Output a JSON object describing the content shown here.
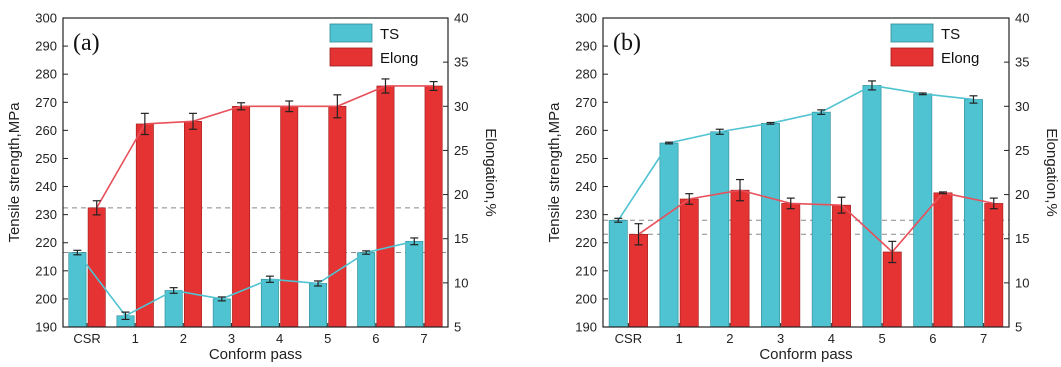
{
  "figure": {
    "colors": {
      "ts": "#4fc3d1",
      "elong": "#e53232",
      "ts_line": "#4fc3d1",
      "elong_line": "#e8505a",
      "ref_line": "#888888"
    },
    "chart_data": [
      {
        "type": "bar",
        "panel_label": "(a)",
        "categories": [
          "CSR",
          "1",
          "2",
          "3",
          "4",
          "5",
          "6",
          "7"
        ],
        "xlabel": "Conform pass",
        "ylabel": "Tensile strength,MPa",
        "y2label": "Elongation,%",
        "ylim": [
          190,
          300
        ],
        "yticks": [
          190,
          200,
          210,
          220,
          230,
          240,
          250,
          260,
          270,
          280,
          290,
          300
        ],
        "y2lim": [
          5,
          40
        ],
        "y2ticks": [
          5,
          10,
          15,
          20,
          25,
          30,
          35,
          40
        ],
        "legend": [
          "TS",
          "Elong"
        ],
        "legend_position": "top-right",
        "reference_lines": {
          "ts": 216.5,
          "elong": 18.5
        },
        "series": [
          {
            "name": "TS",
            "axis": "left",
            "values": [
              216.5,
              194,
              203,
              200,
              207,
              205.5,
              216.5,
              220.5
            ],
            "errors": [
              0.8,
              1.3,
              1.0,
              0.7,
              1.1,
              0.9,
              0.6,
              1.2
            ]
          },
          {
            "name": "Elong",
            "axis": "right",
            "values": [
              18.5,
              28,
              28.3,
              30,
              30,
              30,
              32.3,
              32.3
            ],
            "errors": [
              0.8,
              1.2,
              0.9,
              0.4,
              0.6,
              1.3,
              0.8,
              0.5
            ]
          }
        ]
      },
      {
        "type": "bar",
        "panel_label": "(b)",
        "categories": [
          "CSR",
          "1",
          "2",
          "3",
          "4",
          "5",
          "6",
          "7"
        ],
        "xlabel": "Conform pass",
        "ylabel": "Tensile strength,MPa",
        "y2label": "Elongation,%",
        "ylim": [
          190,
          300
        ],
        "yticks": [
          190,
          200,
          210,
          220,
          230,
          240,
          250,
          260,
          270,
          280,
          290,
          300
        ],
        "y2lim": [
          5,
          40
        ],
        "y2ticks": [
          5,
          10,
          15,
          20,
          25,
          30,
          35,
          40
        ],
        "legend": [
          "TS",
          "Elong"
        ],
        "legend_position": "top-right",
        "reference_lines": {
          "ts": 228,
          "elong": 15.5
        },
        "series": [
          {
            "name": "TS",
            "axis": "left",
            "values": [
              228,
              255.5,
              259.5,
              262.5,
              266.5,
              276,
              273,
              271
            ],
            "errors": [
              0.7,
              0.3,
              0.9,
              0.3,
              0.8,
              1.6,
              0.3,
              1.3
            ]
          },
          {
            "name": "Elong",
            "axis": "right",
            "values": [
              15.5,
              19.5,
              20.5,
              19,
              18.8,
              13.5,
              20.2,
              19
            ],
            "errors": [
              1.2,
              0.6,
              1.2,
              0.6,
              0.9,
              1.2,
              0.1,
              0.6
            ]
          }
        ]
      }
    ]
  }
}
